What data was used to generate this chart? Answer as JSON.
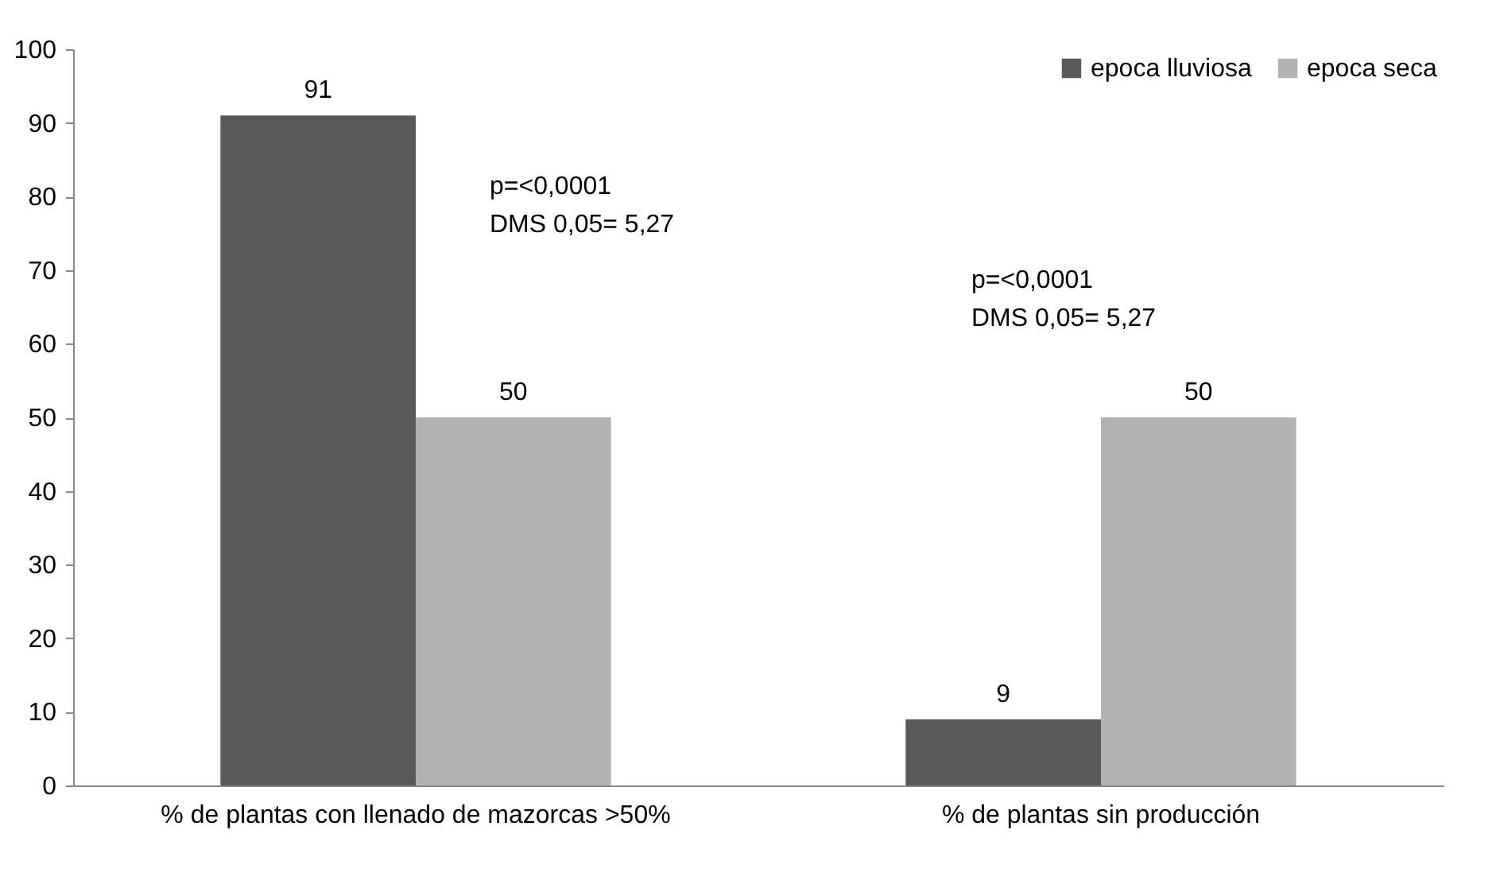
{
  "chart_data": {
    "type": "bar",
    "categories": [
      "% de plantas con llenado de mazorcas >50%",
      "% de plantas sin producción"
    ],
    "series": [
      {
        "name": "epoca lluviosa",
        "color": "#595959",
        "values": [
          91,
          9
        ]
      },
      {
        "name": "epoca seca",
        "color": "#b2b2b2",
        "values": [
          50,
          50
        ]
      }
    ],
    "ylim": [
      0,
      100
    ],
    "yticks": [
      0,
      10,
      20,
      30,
      40,
      50,
      60,
      70,
      80,
      90,
      100
    ],
    "data_labels": true,
    "legend": "top right",
    "annotations": [
      "p=<0,0001\nDMS 0,05= 5,27",
      "p=<0,0001\nDMS 0,05= 5,27"
    ]
  }
}
